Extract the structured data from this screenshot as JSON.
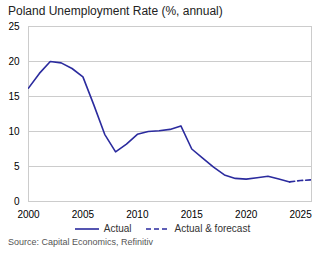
{
  "chart_data": {
    "type": "line",
    "title": "Poland Unemployment Rate (%, annual)",
    "annotations": [
      "Source: Capital Economics, Refinitiv"
    ],
    "series": [
      {
        "name": "Actual",
        "color": "#2b2b9e",
        "line_style": "solid",
        "x": [
          2000,
          2001,
          2002,
          2003,
          2004,
          2005,
          2006,
          2007,
          2008,
          2009,
          2010,
          2011,
          2012,
          2013,
          2014,
          2015,
          2016,
          2017,
          2018,
          2019,
          2020,
          2021,
          2022,
          2023,
          2024
        ],
        "values": [
          16.2,
          18.3,
          20.0,
          19.8,
          19.0,
          17.8,
          13.8,
          9.6,
          7.1,
          8.2,
          9.6,
          10.0,
          10.1,
          10.3,
          10.8,
          7.5,
          6.2,
          4.9,
          3.8,
          3.3,
          3.2,
          3.4,
          3.6,
          3.2,
          2.8
        ]
      },
      {
        "name": "Actual & forecast",
        "color": "#2b2b9e",
        "line_style": "dashed",
        "x": [
          2024,
          2025,
          2026
        ],
        "values": [
          2.8,
          3.0,
          3.1
        ]
      }
    ],
    "xlim": [
      2000,
      2026
    ],
    "xticks": [
      2000,
      2005,
      2010,
      2015,
      2020,
      2025
    ],
    "ylim": [
      0,
      25
    ],
    "yticks": [
      0,
      5,
      10,
      15,
      20,
      25
    ],
    "grid": "y",
    "legend": "bottom"
  }
}
